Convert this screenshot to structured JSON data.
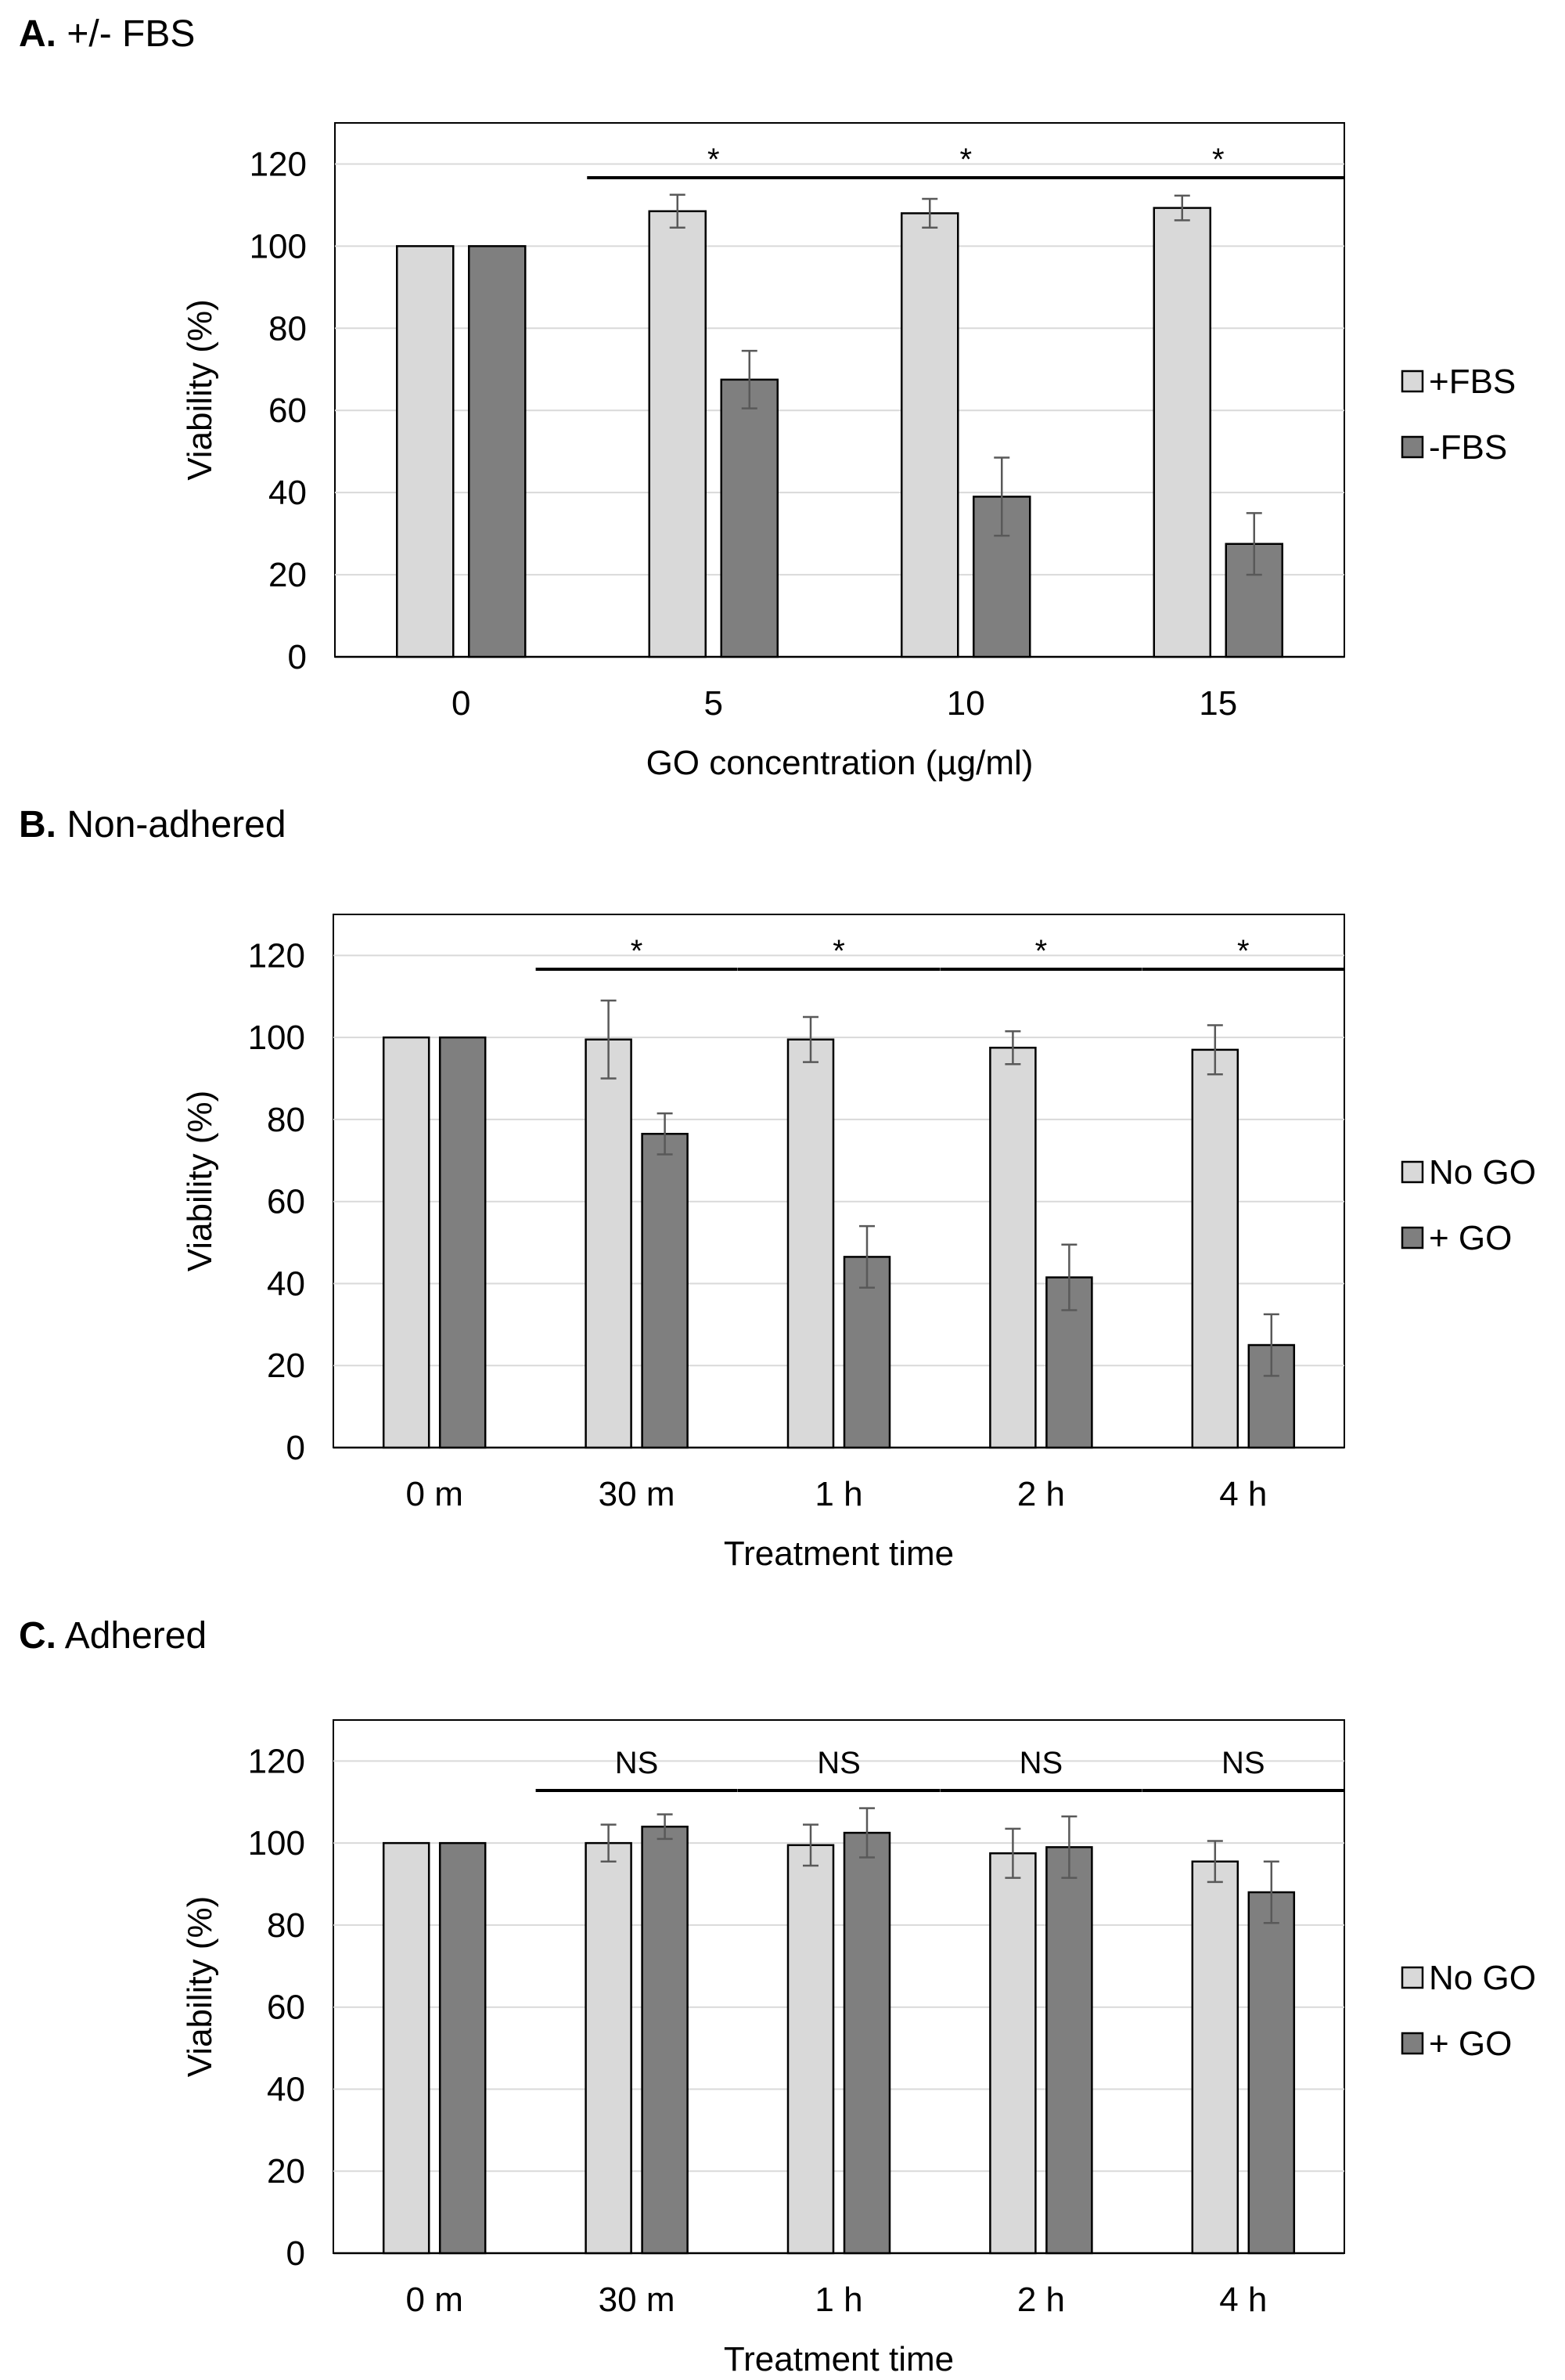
{
  "chart_data": [
    {
      "type": "bar",
      "panel_letter": "A.",
      "panel_title": "+/- FBS",
      "xlabel": "GO concentration (µg/ml)",
      "ylabel": "Viability (%)",
      "ylim": [
        0,
        130
      ],
      "yticks": [
        "0",
        "20",
        "40",
        "60",
        "80",
        "100",
        "120"
      ],
      "grid": true,
      "legend_position": "right",
      "categories": [
        "0",
        "5",
        "10",
        "15"
      ],
      "series": [
        {
          "name": "+FBS",
          "color": "#d9d9d9",
          "values": [
            100,
            108.5,
            108,
            109.3
          ],
          "errors": [
            0,
            4,
            3.5,
            3
          ]
        },
        {
          "name": "-FBS",
          "color": "#7f7f7f",
          "values": [
            100,
            67.5,
            39,
            27.5
          ],
          "errors": [
            0,
            7,
            9.5,
            7.5
          ]
        }
      ],
      "significance": [
        "",
        "*",
        "*",
        "*"
      ]
    },
    {
      "type": "bar",
      "panel_letter": "B.",
      "panel_title": "Non-adhered",
      "xlabel": "Treatment time",
      "ylabel": "Viability (%)",
      "ylim": [
        0,
        130
      ],
      "yticks": [
        "0",
        "20",
        "40",
        "60",
        "80",
        "100",
        "120"
      ],
      "grid": true,
      "legend_position": "right",
      "categories": [
        "0 m",
        "30 m",
        "1 h",
        "2 h",
        "4 h"
      ],
      "series": [
        {
          "name": "No GO",
          "color": "#d9d9d9",
          "values": [
            100,
            99.5,
            99.5,
            97.5,
            97
          ],
          "errors": [
            0,
            9.5,
            5.5,
            4,
            6
          ]
        },
        {
          "name": "+ GO",
          "color": "#7f7f7f",
          "values": [
            100,
            76.5,
            46.5,
            41.5,
            25
          ],
          "errors": [
            0,
            5,
            7.5,
            8,
            7.5
          ]
        }
      ],
      "significance": [
        "",
        "*",
        "*",
        "*",
        "*"
      ]
    },
    {
      "type": "bar",
      "panel_letter": "C.",
      "panel_title": "Adhered",
      "xlabel": "Treatment time",
      "ylabel": "Viability (%)",
      "ylim": [
        0,
        130
      ],
      "yticks": [
        "0",
        "20",
        "40",
        "60",
        "80",
        "100",
        "120"
      ],
      "grid": true,
      "legend_position": "right",
      "categories": [
        "0 m",
        "30 m",
        "1 h",
        "2 h",
        "4 h"
      ],
      "series": [
        {
          "name": "No GO",
          "color": "#d9d9d9",
          "values": [
            100,
            100,
            99.5,
            97.5,
            95.5
          ],
          "errors": [
            0,
            4.5,
            5,
            6,
            5
          ]
        },
        {
          "name": "+ GO",
          "color": "#7f7f7f",
          "values": [
            100,
            104,
            102.5,
            99,
            88
          ],
          "errors": [
            0,
            3,
            6,
            7.5,
            7.5
          ]
        }
      ],
      "significance": [
        "",
        "NS",
        "NS",
        "NS",
        "NS"
      ]
    }
  ]
}
